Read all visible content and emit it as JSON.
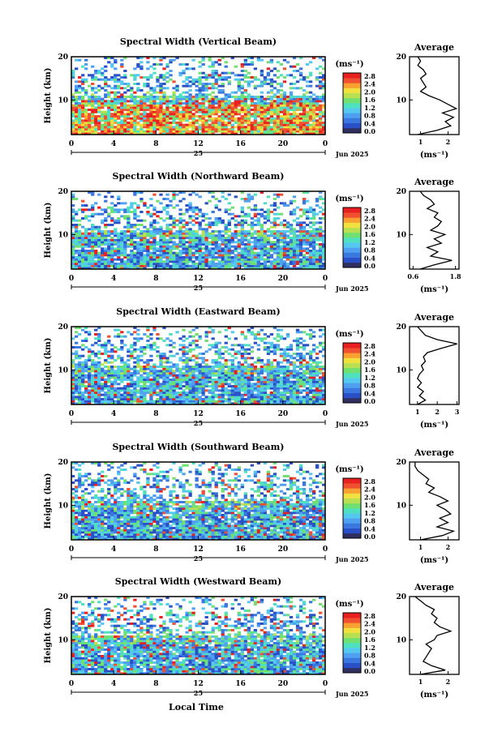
{
  "figure": {
    "bottom_xlabel": "Local Time",
    "colors": [
      "#303060",
      "#2a50c8",
      "#3a78e0",
      "#4fa0f0",
      "#55c8f0",
      "#4fe0c0",
      "#70e070",
      "#b8e050",
      "#f0e040",
      "#f8a030",
      "#f05030",
      "#e82020"
    ]
  },
  "chart_data": [
    {
      "type": "heatmap",
      "title": "Spectral Width (Vertical Beam)",
      "ylabel": "Height (km)",
      "xticks": [
        "0",
        "4",
        "8",
        "12",
        "16",
        "20",
        "0"
      ],
      "day_label": "25",
      "date_label": "Jun 2025",
      "ylim": [
        2,
        20
      ],
      "yticks": [
        "20",
        "10"
      ],
      "colorbar": {
        "unit": "(ms⁻¹)",
        "ticks": [
          "2.8",
          "2.4",
          "2.0",
          "1.6",
          "1.2",
          "0.8",
          "0.4",
          "0.0"
        ]
      },
      "profile": {
        "title": "Average",
        "xlabel": "(ms⁻¹)",
        "xticks": [
          "1",
          "2"
        ],
        "xlim": [
          0.6,
          2.4
        ],
        "yticks": [
          "20",
          "10"
        ],
        "heights": [
          2,
          3,
          4,
          5,
          6,
          7,
          8,
          9,
          10,
          11,
          12,
          13,
          14,
          15,
          16,
          17,
          18,
          19,
          20
        ],
        "values": [
          0.9,
          1.6,
          2.1,
          1.9,
          2.2,
          1.8,
          2.3,
          2.0,
          1.7,
          1.3,
          1.0,
          1.2,
          1.1,
          1.0,
          1.2,
          1.1,
          0.9,
          1.0,
          0.9
        ]
      }
    },
    {
      "type": "heatmap",
      "title": "Spectral Width (Northward Beam)",
      "ylabel": "Height (km)",
      "xticks": [
        "0",
        "4",
        "8",
        "12",
        "16",
        "20",
        "0"
      ],
      "day_label": "25",
      "date_label": "Jun 2025",
      "ylim": [
        2,
        20
      ],
      "yticks": [
        "20",
        "10"
      ],
      "colorbar": {
        "unit": "(ms⁻¹)",
        "ticks": [
          "2.8",
          "2.4",
          "2.0",
          "1.6",
          "1.2",
          "0.8",
          "0.4",
          "0.0"
        ]
      },
      "profile": {
        "title": "Average",
        "xlabel": "(ms⁻¹)",
        "xticks": [
          "0.6",
          "1.8"
        ],
        "xlim": [
          0.5,
          1.9
        ],
        "yticks": [
          "20",
          "10"
        ],
        "heights": [
          2,
          3,
          4,
          5,
          6,
          7,
          8,
          9,
          10,
          11,
          12,
          13,
          14,
          15,
          16,
          17,
          18,
          19,
          20
        ],
        "values": [
          0.8,
          1.2,
          1.7,
          1.1,
          1.3,
          1.0,
          1.4,
          1.2,
          1.5,
          1.1,
          1.3,
          1.4,
          1.2,
          1.3,
          1.0,
          1.2,
          1.1,
          0.9,
          0.8
        ]
      }
    },
    {
      "type": "heatmap",
      "title": "Spectral Width (Eastward Beam)",
      "ylabel": "Height (km)",
      "xticks": [
        "0",
        "4",
        "8",
        "12",
        "16",
        "20",
        "0"
      ],
      "day_label": "25",
      "date_label": "Jun 2025",
      "ylim": [
        2,
        20
      ],
      "yticks": [
        "20",
        "10"
      ],
      "colorbar": {
        "unit": "(ms⁻¹)",
        "ticks": [
          "2.8",
          "2.4",
          "2.0",
          "1.6",
          "1.2",
          "0.8",
          "0.4",
          "0.0"
        ]
      },
      "profile": {
        "title": "Average",
        "xlabel": "(ms⁻¹)",
        "xticks": [
          "1",
          "2",
          "3"
        ],
        "xlim": [
          0.6,
          3.1
        ],
        "yticks": [
          "20",
          "10"
        ],
        "heights": [
          2,
          3,
          4,
          5,
          6,
          7,
          8,
          9,
          10,
          11,
          12,
          13,
          14,
          15,
          16,
          17,
          18,
          19,
          20
        ],
        "values": [
          1.0,
          1.4,
          1.1,
          1.3,
          1.0,
          1.2,
          1.0,
          1.1,
          1.3,
          1.2,
          1.4,
          1.3,
          1.5,
          2.2,
          3.0,
          2.0,
          1.4,
          1.2,
          1.0
        ]
      }
    },
    {
      "type": "heatmap",
      "title": "Spectral Width (Southward Beam)",
      "ylabel": "Height (km)",
      "xticks": [
        "0",
        "4",
        "8",
        "12",
        "16",
        "20",
        "0"
      ],
      "day_label": "25",
      "date_label": "Jun 2025",
      "ylim": [
        2,
        20
      ],
      "yticks": [
        "20",
        "10"
      ],
      "colorbar": {
        "unit": "(ms⁻¹)",
        "ticks": [
          "2.8",
          "2.4",
          "2.0",
          "1.6",
          "1.2",
          "0.8",
          "0.4",
          "0.0"
        ]
      },
      "profile": {
        "title": "Average",
        "xlabel": "(ms⁻¹)",
        "xticks": [
          "1",
          "2"
        ],
        "xlim": [
          0.6,
          2.4
        ],
        "yticks": [
          "20",
          "10"
        ],
        "heights": [
          2,
          3,
          4,
          5,
          6,
          7,
          8,
          9,
          10,
          11,
          12,
          13,
          14,
          15,
          16,
          17,
          18,
          19,
          20
        ],
        "values": [
          1.0,
          1.8,
          2.2,
          1.6,
          2.0,
          1.7,
          2.1,
          1.9,
          1.6,
          2.0,
          1.7,
          1.3,
          1.5,
          1.2,
          1.3,
          1.1,
          0.9,
          0.8,
          0.8
        ]
      }
    },
    {
      "type": "heatmap",
      "title": "Spectral Width (Westward Beam)",
      "ylabel": "Height (km)",
      "xticks": [
        "0",
        "4",
        "8",
        "12",
        "16",
        "20",
        "0"
      ],
      "day_label": "25",
      "date_label": "Jun 2025",
      "ylim": [
        2,
        20
      ],
      "yticks": [
        "20",
        "10"
      ],
      "colorbar": {
        "unit": "(ms⁻¹)",
        "ticks": [
          "2.8",
          "2.4",
          "2.0",
          "1.6",
          "1.2",
          "0.8",
          "0.4",
          "0.0"
        ]
      },
      "profile": {
        "title": "Average",
        "xlabel": "(ms⁻¹)",
        "xticks": [
          "1",
          "2"
        ],
        "xlim": [
          0.6,
          2.4
        ],
        "yticks": [
          "20",
          "10"
        ],
        "heights": [
          2,
          3,
          4,
          5,
          6,
          7,
          8,
          9,
          10,
          11,
          12,
          13,
          14,
          15,
          16,
          17,
          18,
          19,
          20
        ],
        "values": [
          1.0,
          1.9,
          1.4,
          1.1,
          1.2,
          1.3,
          1.4,
          1.2,
          1.5,
          1.6,
          2.1,
          1.7,
          1.5,
          1.6,
          1.4,
          1.5,
          1.2,
          1.0,
          0.8
        ]
      }
    }
  ]
}
